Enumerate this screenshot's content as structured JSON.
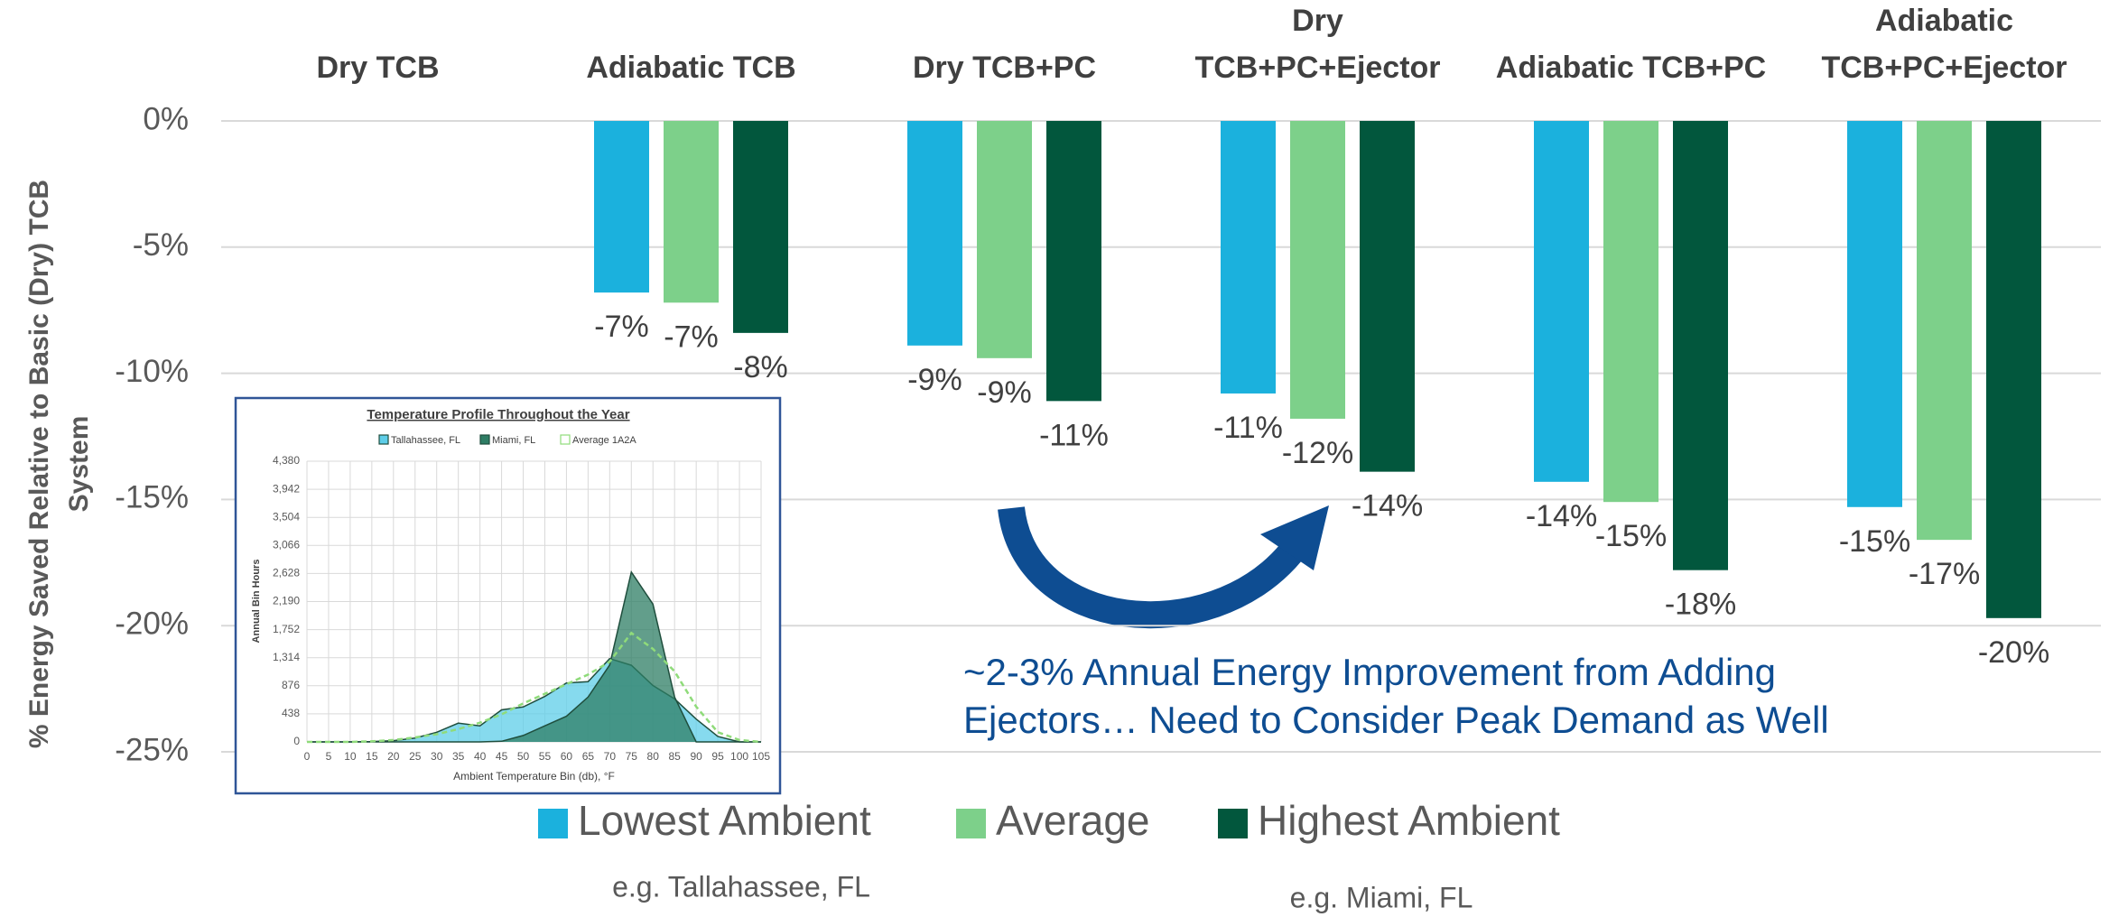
{
  "chart_data": [
    {
      "type": "bar",
      "categories": [
        "Dry TCB",
        "Adiabatic TCB",
        "Dry TCB+PC",
        "Dry\nTCB+PC+Ejector",
        "Adiabatic TCB+PC",
        "Adiabatic\nTCB+PC+Ejector"
      ],
      "series": [
        {
          "name": "Lowest Ambient",
          "color": "#1bb1dd",
          "values": [
            null,
            -6.8,
            -8.9,
            -10.8,
            -14.3,
            -15.3
          ],
          "value_labels": [
            null,
            "-7%",
            "-9%",
            "-11%",
            "-14%",
            "-15%"
          ]
        },
        {
          "name": "Average",
          "color": "#7dd08a",
          "values": [
            null,
            -7.2,
            -9.4,
            -11.8,
            -15.1,
            -16.6
          ],
          "value_labels": [
            null,
            "-7%",
            "-9%",
            "-12%",
            "-15%",
            "-17%"
          ]
        },
        {
          "name": "Highest Ambient",
          "color": "#02573d",
          "values": [
            null,
            -8.4,
            -11.1,
            -13.9,
            -17.8,
            -19.7
          ],
          "value_labels": [
            null,
            "-8%",
            "-11%",
            "-14%",
            "-18%",
            "-20%"
          ]
        }
      ],
      "ylabel": "% Energy Saved Relative to Basic (Dry) TCB\nSystem",
      "ylim": [
        -25,
        0
      ],
      "yticks": [
        {
          "value": 0,
          "label": "0%"
        },
        {
          "value": -5,
          "label": "-5%"
        },
        {
          "value": -10,
          "label": "-10%"
        },
        {
          "value": -15,
          "label": "-15%"
        },
        {
          "value": -20,
          "label": "-20%"
        },
        {
          "value": -25,
          "label": "-25%"
        }
      ],
      "grid": true,
      "annotation": [
        "~2-3% Annual Energy Improvement from Adding",
        "Ejectors… Need to Consider Peak Demand as Well"
      ],
      "notes": [
        "e.g. Tallahassee, FL",
        "e.g. Miami, FL"
      ]
    },
    {
      "type": "area",
      "title": "Temperature Profile Throughout the Year",
      "xlabel": "Ambient Temperature Bin (db), °F",
      "ylabel": "Annual Bin Hours",
      "x": [
        0,
        5,
        10,
        15,
        20,
        25,
        30,
        35,
        40,
        45,
        50,
        55,
        60,
        65,
        70,
        75,
        80,
        85,
        90,
        95,
        100,
        105
      ],
      "series": [
        {
          "name": "Tallahassee, FL",
          "color": "#5ecde8",
          "values": [
            0,
            0,
            0,
            5,
            20,
            60,
            150,
            293,
            250,
            500,
            545,
            710,
            920,
            940,
            1300,
            1195,
            880,
            670,
            356,
            84,
            0,
            0
          ]
        },
        {
          "name": "Miami, FL",
          "color": "#2e7d64",
          "values": [
            0,
            0,
            0,
            0,
            0,
            0,
            0,
            0,
            0,
            10,
            100,
            250,
            400,
            700,
            1200,
            2650,
            2150,
            700,
            0,
            0,
            0,
            0
          ]
        },
        {
          "name": "Average 1A2A",
          "color": "#8fdb7a",
          "dashed": true,
          "values": [
            0,
            0,
            0,
            10,
            30,
            70,
            120,
            200,
            300,
            430,
            600,
            750,
            900,
            1050,
            1250,
            1700,
            1450,
            1100,
            550,
            150,
            30,
            0
          ]
        }
      ],
      "xlim": [
        0,
        105
      ],
      "xticks": [
        0,
        5,
        10,
        15,
        20,
        25,
        30,
        35,
        40,
        45,
        50,
        55,
        60,
        65,
        70,
        75,
        80,
        85,
        90,
        95,
        100,
        105
      ],
      "ylim": [
        0,
        4380
      ],
      "yticks": [
        0,
        438,
        876,
        {
          "value": 1314,
          "label": "1,314"
        },
        {
          "value": 1752,
          "label": "1,752"
        },
        {
          "value": 2190,
          "label": "2,190"
        },
        {
          "value": 2628,
          "label": "2,628"
        },
        {
          "value": 3066,
          "label": "3,066"
        },
        {
          "value": 3504,
          "label": "3,504"
        },
        {
          "value": 3942,
          "label": "3,942"
        },
        {
          "value": 4380,
          "label": "4,380"
        }
      ],
      "grid": true
    }
  ]
}
